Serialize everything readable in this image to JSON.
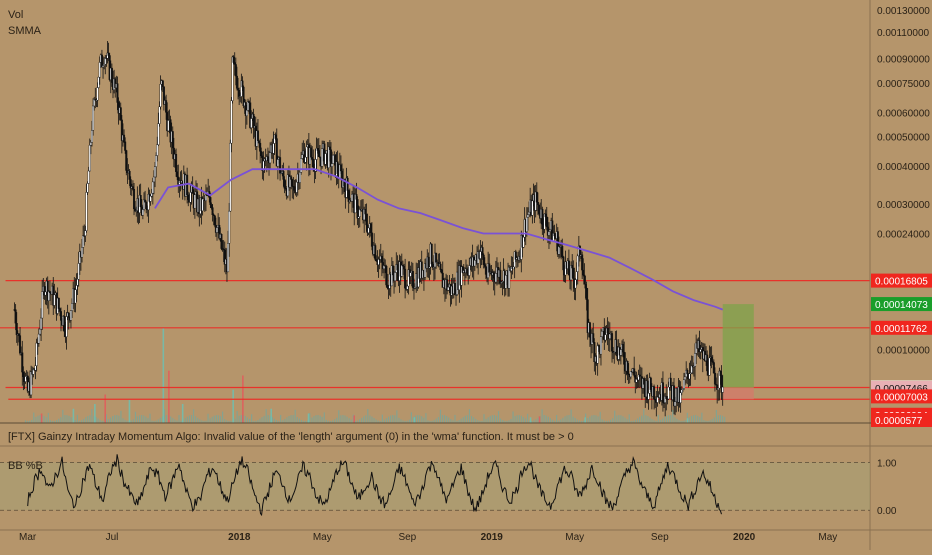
{
  "indicator_labels": {
    "vol": "Vol",
    "smma": "SMMA",
    "bb": "BB %B"
  },
  "error_message": "[FTX] Gainzy Intraday Momentum Algo: Invalid value of the 'length' argument (0) in the 'wma' function. It must be > 0",
  "colors": {
    "background": "#b5956b",
    "candle_line": "#111111",
    "candle_up_fill": "#ffffff",
    "smma": "#7a52d6",
    "level_line": "#e8322a",
    "target_zone": "#7fa34a",
    "stop_zone": "#d37a6a",
    "tag_red": "#f0261e",
    "tag_green": "#1a9e2a",
    "tag_white": "#ffffff",
    "tag_pink": "#e8b0b4",
    "bb_band": "#a8a073"
  },
  "chart_data": [
    {
      "type": "candlestick",
      "scale": "log",
      "x_range": [
        "2017-01-20",
        "2020-07-01"
      ],
      "y_range": [
        5.77e-05,
        0.0013
      ],
      "x_ticks": [
        {
          "label": "Mar",
          "date": "2017-03-01"
        },
        {
          "label": "Jul",
          "date": "2017-07-01"
        },
        {
          "label": "2018",
          "date": "2018-01-01"
        },
        {
          "label": "May",
          "date": "2018-05-01"
        },
        {
          "label": "Sep",
          "date": "2018-09-01"
        },
        {
          "label": "2019",
          "date": "2019-01-01"
        },
        {
          "label": "May",
          "date": "2019-05-01"
        },
        {
          "label": "Sep",
          "date": "2019-09-01"
        },
        {
          "label": "2020",
          "date": "2020-01-01"
        },
        {
          "label": "May",
          "date": "2020-05-01"
        }
      ],
      "y_ticks": [
        {
          "label": "0.00130000",
          "value": 0.0013
        },
        {
          "label": "0.00110000",
          "value": 0.0011
        },
        {
          "label": "0.00090000",
          "value": 0.0009
        },
        {
          "label": "0.00075000",
          "value": 0.00075
        },
        {
          "label": "0.00060000",
          "value": 0.0006
        },
        {
          "label": "0.00050000",
          "value": 0.0005
        },
        {
          "label": "0.00040000",
          "value": 0.0004
        },
        {
          "label": "0.00030000",
          "value": 0.0003
        },
        {
          "label": "0.00024000",
          "value": 0.00024
        },
        {
          "label": "0.00010000",
          "value": 0.0001
        }
      ],
      "price_tags": [
        {
          "label": "0.00016805",
          "value": 0.00016805,
          "style": "red"
        },
        {
          "label": "0.00014073",
          "value": 0.00014073,
          "style": "green"
        },
        {
          "label": "0.00011762",
          "value": 0.00011762,
          "style": "red"
        },
        {
          "label": "0.00007490",
          "value": 7.49e-05,
          "style": "white"
        },
        {
          "label": "0.00007466",
          "value": 7.466e-05,
          "style": "pink"
        },
        {
          "label": "0.00007003",
          "value": 7.003e-05,
          "style": "red"
        },
        {
          "label": "0.00006094",
          "value": 6.094e-05,
          "style": "red"
        },
        {
          "label": "0.0000577",
          "value": 5.77e-05,
          "style": "red"
        }
      ],
      "levels": [
        {
          "value": 0.00016805,
          "from": "2017-01-28"
        },
        {
          "value": 0.00011762,
          "from": "2017-01-01"
        },
        {
          "value": 7.49e-05,
          "from": "2017-01-28"
        },
        {
          "value": 6.854e-05,
          "from": "2017-02-01"
        }
      ],
      "position": {
        "start": "2019-12-01",
        "end": "2020-01-15",
        "entry": 7.49e-05,
        "target": 0.00014073,
        "stop": 6.854e-05
      },
      "price_path": [
        [
          "2017-02-10",
          0.000135
        ],
        [
          "2017-02-20",
          9.5e-05
        ],
        [
          "2017-03-01",
          7.2e-05
        ],
        [
          "2017-03-12",
          8.8e-05
        ],
        [
          "2017-03-25",
          0.000165
        ],
        [
          "2017-04-10",
          0.000145
        ],
        [
          "2017-04-25",
          0.00012
        ],
        [
          "2017-05-10",
          0.00016
        ],
        [
          "2017-05-22",
          0.00024
        ],
        [
          "2017-06-02",
          0.00055
        ],
        [
          "2017-06-12",
          0.00082
        ],
        [
          "2017-06-20",
          0.00095
        ],
        [
          "2017-07-01",
          0.00078
        ],
        [
          "2017-07-10",
          0.00065
        ],
        [
          "2017-07-20",
          0.00042
        ],
        [
          "2017-08-01",
          0.00032
        ],
        [
          "2017-08-15",
          0.00028
        ],
        [
          "2017-09-01",
          0.00038
        ],
        [
          "2017-09-10",
          0.00075
        ],
        [
          "2017-09-20",
          0.00055
        ],
        [
          "2017-10-05",
          0.00038
        ],
        [
          "2017-10-20",
          0.00033
        ],
        [
          "2017-11-05",
          0.00029
        ],
        [
          "2017-11-20",
          0.00032
        ],
        [
          "2017-12-05",
          0.00022
        ],
        [
          "2017-12-15",
          0.00018
        ],
        [
          "2017-12-22",
          0.00085
        ],
        [
          "2018-01-05",
          0.0007
        ],
        [
          "2018-01-20",
          0.00055
        ],
        [
          "2018-02-05",
          0.0004
        ],
        [
          "2018-02-20",
          0.00048
        ],
        [
          "2018-03-05",
          0.00036
        ],
        [
          "2018-03-20",
          0.00033
        ],
        [
          "2018-04-05",
          0.00045
        ],
        [
          "2018-04-20",
          0.00042
        ],
        [
          "2018-05-05",
          0.00044
        ],
        [
          "2018-05-20",
          0.0004
        ],
        [
          "2018-06-05",
          0.00034
        ],
        [
          "2018-06-20",
          0.00029
        ],
        [
          "2018-07-05",
          0.00026
        ],
        [
          "2018-07-20",
          0.0002
        ],
        [
          "2018-08-05",
          0.00017
        ],
        [
          "2018-08-20",
          0.000185
        ],
        [
          "2018-09-05",
          0.000165
        ],
        [
          "2018-09-20",
          0.00018
        ],
        [
          "2018-10-05",
          0.000205
        ],
        [
          "2018-10-20",
          0.00017
        ],
        [
          "2018-11-05",
          0.000155
        ],
        [
          "2018-11-20",
          0.000185
        ],
        [
          "2018-12-05",
          0.00019
        ],
        [
          "2018-12-15",
          0.000215
        ],
        [
          "2018-12-25",
          0.000175
        ],
        [
          "2019-01-10",
          0.00018
        ],
        [
          "2019-01-25",
          0.00017
        ],
        [
          "2019-02-10",
          0.00021
        ],
        [
          "2019-02-20",
          0.00027
        ],
        [
          "2019-03-05",
          0.00031
        ],
        [
          "2019-03-20",
          0.00026
        ],
        [
          "2019-04-05",
          0.00023
        ],
        [
          "2019-04-20",
          0.00018
        ],
        [
          "2019-05-01",
          0.00017
        ],
        [
          "2019-05-10",
          0.00022
        ],
        [
          "2019-05-20",
          0.00012
        ],
        [
          "2019-06-01",
          9.5e-05
        ],
        [
          "2019-06-15",
          0.000115
        ],
        [
          "2019-07-01",
          0.000102
        ],
        [
          "2019-07-15",
          9e-05
        ],
        [
          "2019-08-01",
          7.8e-05
        ],
        [
          "2019-08-15",
          7.5e-05
        ],
        [
          "2019-09-01",
          7.2e-05
        ],
        [
          "2019-09-15",
          7.4e-05
        ],
        [
          "2019-10-01",
          6.8e-05
        ],
        [
          "2019-10-10",
          8.2e-05
        ],
        [
          "2019-10-25",
          0.0001
        ],
        [
          "2019-11-10",
          9e-05
        ],
        [
          "2019-11-20",
          8.2e-05
        ],
        [
          "2019-12-01",
          7.6e-05
        ]
      ],
      "smma_path": [
        [
          "2017-09-01",
          0.00029
        ],
        [
          "2017-09-20",
          0.00034
        ],
        [
          "2017-10-20",
          0.00035
        ],
        [
          "2017-11-20",
          0.00032
        ],
        [
          "2017-12-20",
          0.00036
        ],
        [
          "2018-01-20",
          0.00039
        ],
        [
          "2018-02-20",
          0.00039
        ],
        [
          "2018-03-20",
          0.00039
        ],
        [
          "2018-04-20",
          0.00039
        ],
        [
          "2018-05-20",
          0.00037
        ],
        [
          "2018-06-20",
          0.00034
        ],
        [
          "2018-07-20",
          0.00031
        ],
        [
          "2018-08-20",
          0.00029
        ],
        [
          "2018-09-20",
          0.00028
        ],
        [
          "2018-10-20",
          0.000265
        ],
        [
          "2018-11-20",
          0.00025
        ],
        [
          "2018-12-20",
          0.00024
        ],
        [
          "2019-01-20",
          0.00024
        ],
        [
          "2019-02-20",
          0.00024
        ],
        [
          "2019-03-20",
          0.00023
        ],
        [
          "2019-04-20",
          0.00022
        ],
        [
          "2019-05-20",
          0.00021
        ],
        [
          "2019-06-20",
          0.0002
        ],
        [
          "2019-07-20",
          0.000185
        ],
        [
          "2019-08-20",
          0.00017
        ],
        [
          "2019-09-20",
          0.000155
        ],
        [
          "2019-10-20",
          0.000145
        ],
        [
          "2019-11-20",
          0.000138
        ],
        [
          "2019-12-01",
          0.000135
        ]
      ],
      "volume_spikes": [
        [
          "2017-03-20",
          0.1
        ],
        [
          "2017-05-05",
          0.15
        ],
        [
          "2017-06-05",
          0.2
        ],
        [
          "2017-06-20",
          0.3
        ],
        [
          "2017-07-25",
          0.25
        ],
        [
          "2017-09-12",
          1.0
        ],
        [
          "2017-09-20",
          0.55
        ],
        [
          "2017-10-10",
          0.2
        ],
        [
          "2017-12-22",
          0.35
        ],
        [
          "2018-01-05",
          0.5
        ],
        [
          "2018-02-15",
          0.15
        ],
        [
          "2018-04-10",
          0.1
        ],
        [
          "2018-06-15",
          0.08
        ],
        [
          "2018-09-10",
          0.06
        ],
        [
          "2019-02-25",
          0.06
        ],
        [
          "2019-03-10",
          0.07
        ],
        [
          "2019-05-15",
          0.06
        ],
        [
          "2019-10-10",
          0.05
        ]
      ]
    },
    {
      "type": "line",
      "name": "BB %B",
      "y_ticks": [
        {
          "label": "1.00",
          "value": 1.0
        },
        {
          "label": "0.00",
          "value": 0.0
        }
      ],
      "y_range": [
        -0.35,
        1.3
      ],
      "x_range": [
        "2017-03-01",
        "2019-12-01"
      ],
      "values": [
        0.2,
        0.6,
        0.9,
        0.4,
        0.7,
        1.0,
        0.3,
        0.1,
        0.6,
        0.95,
        0.5,
        0.2,
        0.8,
        1.05,
        0.6,
        0.3,
        0.1,
        0.5,
        0.9,
        0.7,
        0.3,
        0.6,
        1.0,
        0.4,
        0.1,
        0.2,
        0.7,
        0.9,
        0.5,
        0.2,
        0.6,
        1.05,
        0.8,
        0.3,
        0.0,
        0.4,
        0.8,
        0.6,
        0.2,
        0.5,
        0.9,
        0.7,
        0.3,
        0.1,
        0.4,
        0.85,
        1.0,
        0.6,
        0.2,
        0.5,
        0.7,
        0.3,
        0.1,
        0.45,
        0.9,
        0.6,
        0.15,
        0.3,
        0.8,
        1.0,
        0.5,
        0.2,
        0.6,
        0.9,
        0.4,
        0.0,
        0.3,
        0.75,
        0.95,
        0.5,
        0.2,
        0.4,
        0.9,
        1.0,
        0.55,
        0.25,
        0.1,
        0.5,
        0.85,
        0.7,
        0.3,
        0.5,
        0.9,
        0.6,
        0.2,
        0.05,
        0.4,
        0.8,
        1.0,
        0.6,
        0.3,
        0.1,
        0.5,
        0.95,
        0.7,
        0.35,
        0.1,
        0.45,
        0.8,
        0.55,
        0.2,
        0.0
      ]
    }
  ]
}
